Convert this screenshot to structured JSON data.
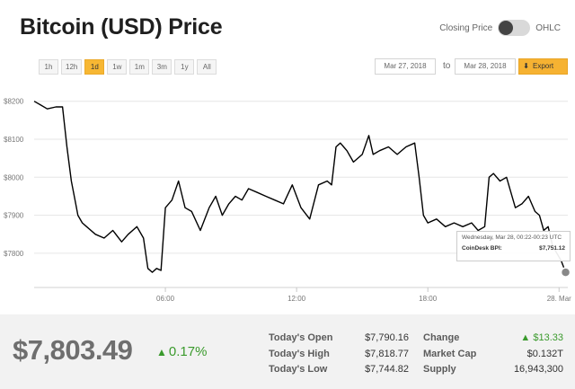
{
  "header": {
    "title": "Bitcoin (USD) Price"
  },
  "toggle": {
    "left_label": "Closing Price",
    "right_label": "OHLC"
  },
  "ranges": [
    "1h",
    "12h",
    "1d",
    "1w",
    "1m",
    "3m",
    "1y",
    "All"
  ],
  "active_range": "1d",
  "dates": {
    "from": "Mar 27, 2018",
    "to_label": "to",
    "to": "Mar 28, 2018"
  },
  "export": {
    "label": "Export",
    "icon": "download-arrow-icon"
  },
  "chart_data": {
    "type": "line",
    "title": "",
    "xlabel": "",
    "ylabel": "",
    "x_unit": "hour of day (Mar 27 UTC, 24 = Mar 28 00:00)",
    "x_ticks": [
      {
        "x": 6,
        "label": "06:00"
      },
      {
        "x": 12,
        "label": "12:00"
      },
      {
        "x": 18,
        "label": "18:00"
      },
      {
        "x": 24,
        "label": "28. Mar"
      }
    ],
    "y_ticks": [
      7800,
      7900,
      8000,
      8100,
      8200
    ],
    "ylim": [
      7710,
      8230
    ],
    "xlim": [
      0,
      24.4
    ],
    "grid": "horizontal",
    "color": "#000000",
    "series": [
      {
        "x": [
          0,
          0.3,
          0.6,
          1.0,
          1.3,
          1.5,
          1.7,
          1.9,
          2.0,
          2.2,
          2.4,
          2.8,
          3.2,
          3.6,
          4.0,
          4.3,
          4.7,
          5.0,
          5.2,
          5.4,
          5.6,
          5.8,
          6.0,
          6.3,
          6.6,
          6.9,
          7.2,
          7.6,
          8.0,
          8.3,
          8.6,
          8.9,
          9.2,
          9.5,
          9.8,
          10.2,
          10.6,
          11.0,
          11.4,
          11.8,
          12.2,
          12.6,
          13.0,
          13.4,
          13.6,
          13.8,
          14.0,
          14.3,
          14.6,
          15.0,
          15.3,
          15.5,
          15.8,
          16.2,
          16.6,
          17.0,
          17.4,
          17.6,
          17.8,
          18.0,
          18.4,
          18.8,
          19.2,
          19.6,
          20.0,
          20.3,
          20.6,
          20.8,
          21.0,
          21.3,
          21.6,
          22.0,
          22.3,
          22.6,
          22.9,
          23.1,
          23.3,
          23.5,
          23.7,
          23.9,
          24.1,
          24.3
        ],
        "y": [
          8200,
          8190,
          8180,
          8185,
          8185,
          8080,
          7990,
          7930,
          7900,
          7880,
          7870,
          7850,
          7840,
          7860,
          7830,
          7850,
          7870,
          7840,
          7760,
          7750,
          7760,
          7755,
          7920,
          7940,
          7990,
          7920,
          7910,
          7860,
          7920,
          7950,
          7900,
          7930,
          7950,
          7940,
          7970,
          7960,
          7950,
          7940,
          7930,
          7980,
          7920,
          7890,
          7980,
          7990,
          7980,
          8080,
          8090,
          8070,
          8040,
          8060,
          8110,
          8060,
          8070,
          8080,
          8060,
          8080,
          8090,
          8000,
          7900,
          7880,
          7890,
          7870,
          7880,
          7870,
          7880,
          7860,
          7870,
          8000,
          8010,
          7990,
          8000,
          7920,
          7930,
          7950,
          7910,
          7900,
          7860,
          7870,
          7820,
          7800,
          7780,
          7750
        ]
      }
    ]
  },
  "tooltip": {
    "datetime": "Wednesday, Mar 28, 00:22-00:23 UTC",
    "label": "CoinDesk BPI:",
    "value": "$7,751.12"
  },
  "footer": {
    "price": "$7,803.49",
    "change_pct": "0.17%",
    "up_color": "#3a9a2c",
    "stats": [
      {
        "label": "Today's Open",
        "value": "$7,790.16"
      },
      {
        "label": "Today's High",
        "value": "$7,818.77"
      },
      {
        "label": "Today's Low",
        "value": "$7,744.82"
      }
    ],
    "stats2": [
      {
        "label": "Change",
        "value": "$13.33",
        "up": true
      },
      {
        "label": "Market Cap",
        "value": "$0.132T"
      },
      {
        "label": "Supply",
        "value": "16,943,300"
      }
    ]
  }
}
